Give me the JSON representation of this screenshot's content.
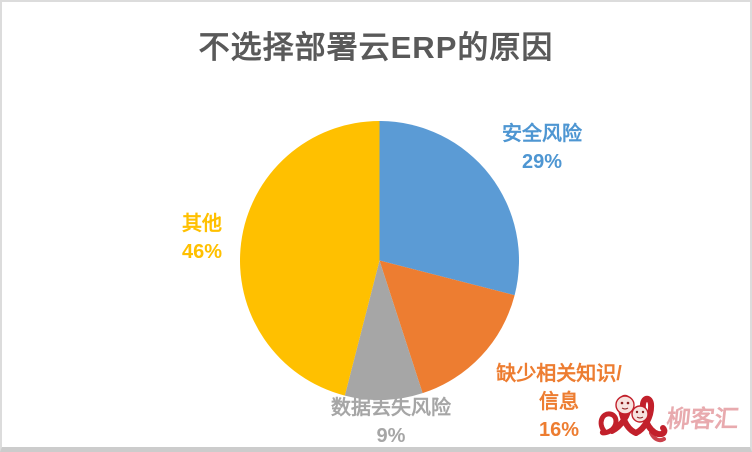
{
  "page": {
    "title": "不选择部署云ERP的原因",
    "title_color": "#595959",
    "background": "#ffffff",
    "border_color": "#d9d9d9"
  },
  "chart_data": {
    "type": "pie",
    "title": "不选择部署云ERP的原因",
    "start_angle_deg": -90,
    "direction": "clockwise",
    "total": 100,
    "legend": "none",
    "labels_position": "outside, colored to match slice",
    "slices": [
      {
        "label": "安全风险",
        "value": 29,
        "display": "29%",
        "color": "#5B9BD5"
      },
      {
        "label": "缺少相关知识/信息",
        "value": 16,
        "display": "16%",
        "color": "#ED7D31"
      },
      {
        "label": "数据丢失风险",
        "value": 9,
        "display": "9%",
        "color": "#A6A6A6"
      },
      {
        "label": "其他",
        "value": 46,
        "display": "46%",
        "color": "#FFC000"
      }
    ]
  },
  "labels": {
    "safety": {
      "lines": [
        "安全风险",
        "29%"
      ],
      "color": "#4E96D2"
    },
    "other": {
      "lines": [
        "其他",
        "46%"
      ],
      "color": "#FFC000"
    },
    "data_loss": {
      "lines": [
        "数据丢失风险",
        "9%"
      ],
      "color": "#A6A6A6"
    },
    "knowledge": {
      "lines": [
        "缺少相关知识/",
        "信息",
        "16%"
      ],
      "color": "#ED7D31"
    }
  },
  "watermark": {
    "text": "柳客汇",
    "color": "#C2202B"
  }
}
